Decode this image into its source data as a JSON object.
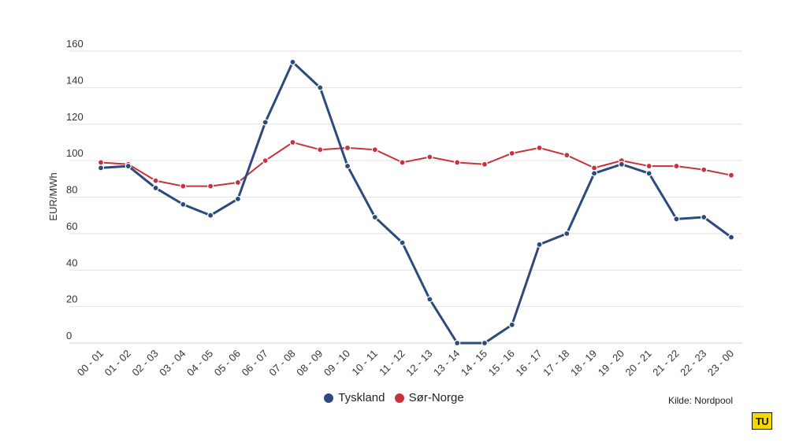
{
  "chart_data": {
    "type": "line",
    "ylabel": "EUR/MWh",
    "ylim": [
      0,
      160
    ],
    "yticks": [
      0,
      20,
      40,
      60,
      80,
      100,
      120,
      140,
      160
    ],
    "grid": true,
    "legend_position": "bottom",
    "categories": [
      "00 - 01",
      "01 - 02",
      "02 - 03",
      "03 - 04",
      "04 - 05",
      "05 - 06",
      "06 - 07",
      "07 - 08",
      "08 - 09",
      "09 - 10",
      "10 - 11",
      "11 - 12",
      "12 - 13",
      "13 - 14",
      "14 - 15",
      "15 - 16",
      "16 - 17",
      "17 - 18",
      "18 - 19",
      "19 - 20",
      "20 - 21",
      "21 - 22",
      "22 - 23",
      "23 - 00"
    ],
    "series": [
      {
        "name": "Tyskland",
        "color": "#2c4a7c",
        "values": [
          96,
          97,
          85,
          76,
          70,
          79,
          121,
          154,
          140,
          97,
          69,
          55,
          24,
          0,
          0,
          10,
          54,
          60,
          93,
          98,
          93,
          68,
          69,
          58
        ]
      },
      {
        "name": "Sør-Norge",
        "color": "#c8323a",
        "values": [
          99,
          98,
          89,
          86,
          86,
          88,
          100,
          110,
          106,
          107,
          106,
          99,
          102,
          99,
          98,
          104,
          107,
          103,
          96,
          100,
          97,
          97,
          95,
          92
        ]
      }
    ]
  },
  "source": "Kilde: Nordpool",
  "logo_text": "TU"
}
